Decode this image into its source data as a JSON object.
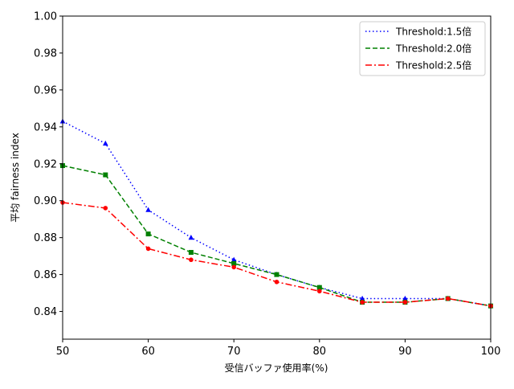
{
  "chart_data": {
    "type": "line",
    "title": "",
    "xlabel": "受信バッファ使用率(%)",
    "ylabel": "平均 fairness index",
    "xlim": [
      50,
      100
    ],
    "ylim": [
      0.825,
      1.0
    ],
    "xticks": [
      50,
      60,
      70,
      80,
      90,
      100
    ],
    "xtick_labels": [
      "50",
      "60",
      "70",
      "80",
      "90",
      "100"
    ],
    "yticks": [
      0.84,
      0.86,
      0.88,
      0.9,
      0.92,
      0.94,
      0.96,
      0.98,
      1.0
    ],
    "ytick_labels": [
      "0.84",
      "0.86",
      "0.88",
      "0.90",
      "0.92",
      "0.94",
      "0.96",
      "0.98",
      "1.00"
    ],
    "grid": false,
    "legend_position": "top-right",
    "x": [
      50,
      55,
      60,
      65,
      70,
      75,
      80,
      85,
      90,
      95,
      100
    ],
    "series": [
      {
        "name": "Threshold:1.5倍",
        "color": "#0000ff",
        "line_style": "dotted",
        "marker": "triangle-up",
        "values": [
          0.943,
          0.931,
          0.895,
          0.88,
          0.868,
          0.86,
          0.853,
          0.847,
          0.847,
          0.847,
          0.843
        ]
      },
      {
        "name": "Threshold:2.0倍",
        "color": "#008000",
        "line_style": "dashed",
        "marker": "square",
        "values": [
          0.919,
          0.914,
          0.882,
          0.872,
          0.866,
          0.86,
          0.853,
          0.845,
          0.845,
          0.847,
          0.843
        ]
      },
      {
        "name": "Threshold:2.5倍",
        "color": "#ff0000",
        "line_style": "dash-dot",
        "marker": "circle",
        "values": [
          0.899,
          0.896,
          0.874,
          0.868,
          0.864,
          0.856,
          0.851,
          0.845,
          0.845,
          0.847,
          0.843
        ]
      }
    ]
  }
}
